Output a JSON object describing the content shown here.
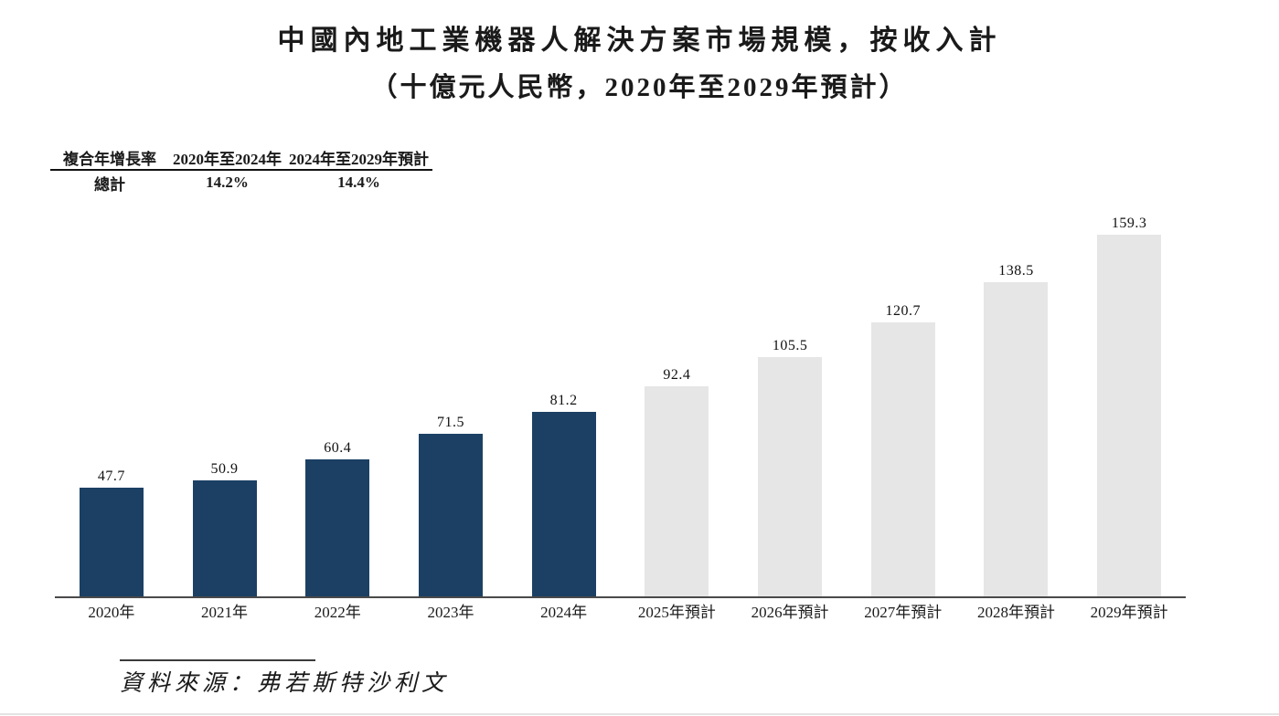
{
  "title": "中國內地工業機器人解決方案市場規模，按收入計",
  "subtitle": "（十億元人民幣，2020年至2029年預計）",
  "cagr_table": {
    "headers": [
      "複合年增長率",
      "2020年至2024年",
      "2024年至2029年預計"
    ],
    "row": [
      "總計",
      "14.2%",
      "14.4%"
    ]
  },
  "source": "資料來源：弗若斯特沙利文",
  "chart_data": {
    "type": "bar",
    "title": "中國內地工業機器人解決方案市場規模，按收入計",
    "subtitle": "（十億元人民幣，2020年至2029年預計）",
    "unit": "十億元人民幣",
    "categories": [
      "2020年",
      "2021年",
      "2022年",
      "2023年",
      "2024年",
      "2025年預計",
      "2026年預計",
      "2027年預計",
      "2028年預計",
      "2029年預計"
    ],
    "values": [
      47.7,
      50.9,
      60.4,
      71.5,
      81.2,
      92.4,
      105.5,
      120.7,
      138.5,
      159.3
    ],
    "ylim": [
      0,
      170
    ],
    "grid": false,
    "legend": "none",
    "value_labels_shown": true,
    "forecast_start_index": 5,
    "colors": {
      "historical": "#1B4064",
      "forecast": "#E6E6E6"
    },
    "cagr_2020_2024": "14.2%",
    "cagr_2024_2029": "14.4%"
  }
}
